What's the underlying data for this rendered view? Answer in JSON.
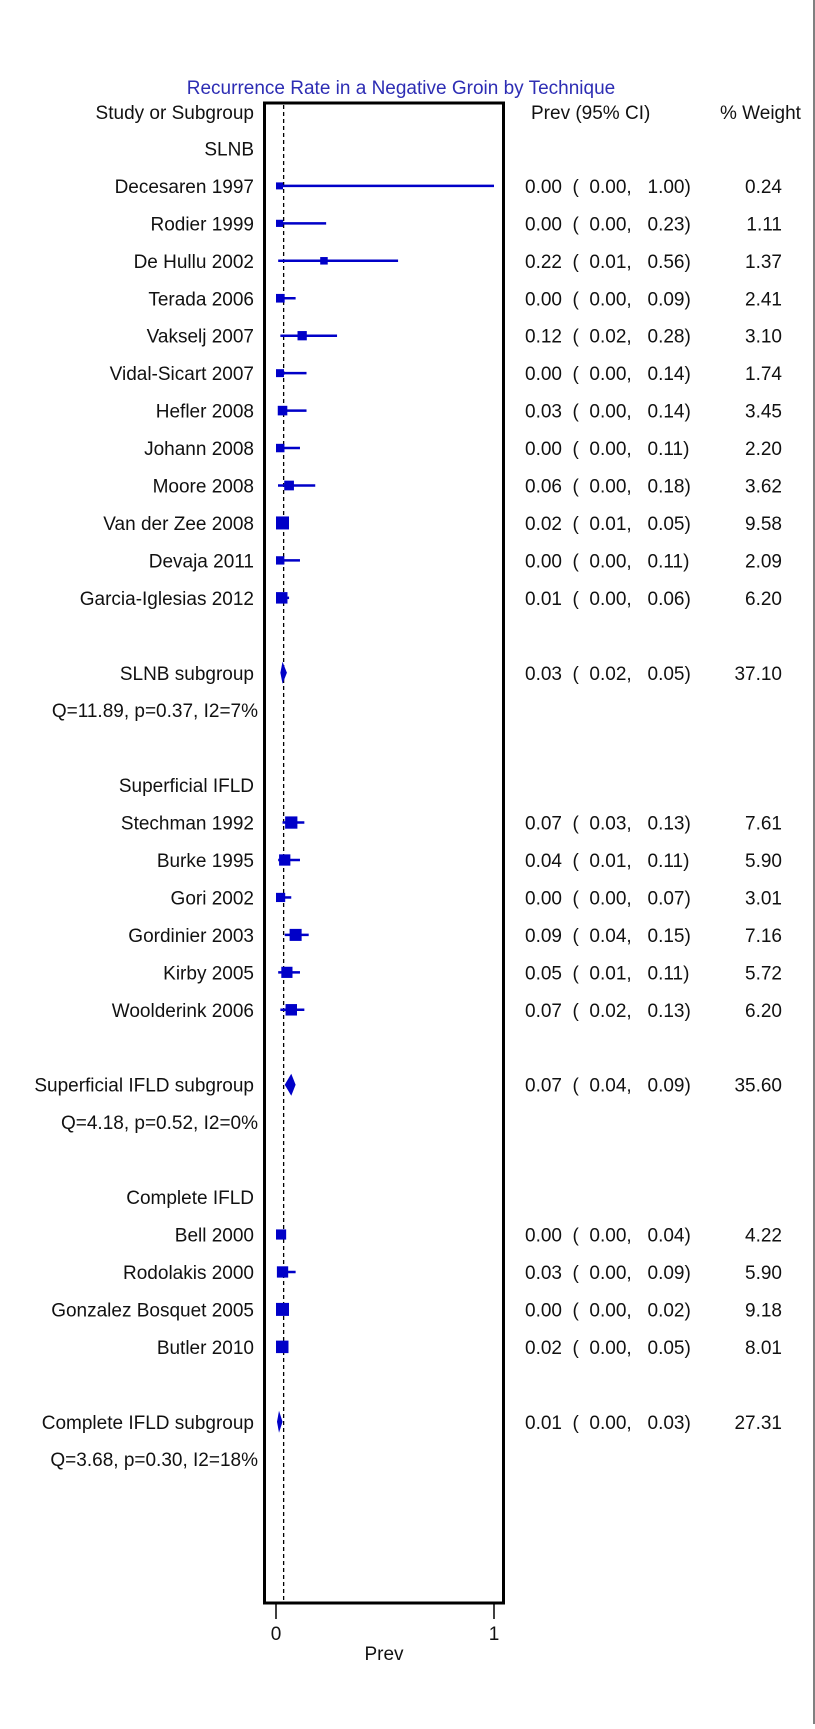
{
  "chart_data": {
    "type": "forest",
    "title": "Recurrence Rate in a Negative Groin by Technique",
    "column_headers": {
      "study": "Study or Subgroup",
      "estimate": "Prev (95% CI)",
      "weight": "% Weight"
    },
    "xlabel": "Prev",
    "xlim": [
      0,
      1
    ],
    "x_ticks": [
      "0",
      "1"
    ],
    "overall_line_x": 0.035,
    "colors": {
      "marker": "#0000c8",
      "title": "#2d2db4",
      "frame": "#000000"
    },
    "groups": [
      {
        "name": "SLNB",
        "studies": [
          {
            "label": "Decesaren 1997",
            "est": 0.0,
            "lo": 0.0,
            "hi": 1.0,
            "ci_text": "0.00  (  0.00,   1.00)",
            "weight": "0.24",
            "w": 0.24
          },
          {
            "label": "Rodier 1999",
            "est": 0.0,
            "lo": 0.0,
            "hi": 0.23,
            "ci_text": "0.00  (  0.00,   0.23)",
            "weight": "1.11",
            "w": 1.11
          },
          {
            "label": "De Hullu 2002",
            "est": 0.22,
            "lo": 0.01,
            "hi": 0.56,
            "ci_text": "0.22  (  0.01,   0.56)",
            "weight": "1.37",
            "w": 1.37
          },
          {
            "label": "Terada 2006",
            "est": 0.0,
            "lo": 0.0,
            "hi": 0.09,
            "ci_text": "0.00  (  0.00,   0.09)",
            "weight": "2.41",
            "w": 2.41
          },
          {
            "label": "Vakselj 2007",
            "est": 0.12,
            "lo": 0.02,
            "hi": 0.28,
            "ci_text": "0.12  (  0.02,   0.28)",
            "weight": "3.10",
            "w": 3.1
          },
          {
            "label": "Vidal-Sicart 2007",
            "est": 0.0,
            "lo": 0.0,
            "hi": 0.14,
            "ci_text": "0.00  (  0.00,   0.14)",
            "weight": "1.74",
            "w": 1.74
          },
          {
            "label": "Hefler 2008",
            "est": 0.03,
            "lo": 0.0,
            "hi": 0.14,
            "ci_text": "0.03  (  0.00,   0.14)",
            "weight": "3.45",
            "w": 3.45
          },
          {
            "label": "Johann 2008",
            "est": 0.0,
            "lo": 0.0,
            "hi": 0.11,
            "ci_text": "0.00  (  0.00,   0.11)",
            "weight": "2.20",
            "w": 2.2
          },
          {
            "label": "Moore 2008",
            "est": 0.06,
            "lo": 0.0,
            "hi": 0.18,
            "ci_text": "0.06  (  0.00,   0.18)",
            "weight": "3.62",
            "w": 3.62
          },
          {
            "label": "Van der Zee 2008",
            "est": 0.02,
            "lo": 0.01,
            "hi": 0.05,
            "ci_text": "0.02  (  0.01,   0.05)",
            "weight": "9.58",
            "w": 9.58
          },
          {
            "label": "Devaja 2011",
            "est": 0.0,
            "lo": 0.0,
            "hi": 0.11,
            "ci_text": "0.00  (  0.00,   0.11)",
            "weight": "2.09",
            "w": 2.09
          },
          {
            "label": "Garcia-Iglesias 2012",
            "est": 0.01,
            "lo": 0.0,
            "hi": 0.06,
            "ci_text": "0.01  (  0.00,   0.06)",
            "weight": "6.20",
            "w": 6.2
          }
        ],
        "subgroup": {
          "label": "SLNB subgroup",
          "est": 0.03,
          "lo": 0.02,
          "hi": 0.05,
          "ci_text": "0.03  (  0.02,   0.05)",
          "weight": "37.10"
        },
        "stats": "Q=11.89, p=0.37, I2=7%"
      },
      {
        "name": "Superficial IFLD",
        "studies": [
          {
            "label": "Stechman 1992",
            "est": 0.07,
            "lo": 0.03,
            "hi": 0.13,
            "ci_text": "0.07  (  0.03,   0.13)",
            "weight": "7.61",
            "w": 7.61
          },
          {
            "label": "Burke 1995",
            "est": 0.04,
            "lo": 0.01,
            "hi": 0.11,
            "ci_text": "0.04  (  0.01,   0.11)",
            "weight": "5.90",
            "w": 5.9
          },
          {
            "label": "Gori 2002",
            "est": 0.0,
            "lo": 0.0,
            "hi": 0.07,
            "ci_text": "0.00  (  0.00,   0.07)",
            "weight": "3.01",
            "w": 3.01
          },
          {
            "label": "Gordinier 2003",
            "est": 0.09,
            "lo": 0.04,
            "hi": 0.15,
            "ci_text": "0.09  (  0.04,   0.15)",
            "weight": "7.16",
            "w": 7.16
          },
          {
            "label": "Kirby 2005",
            "est": 0.05,
            "lo": 0.01,
            "hi": 0.11,
            "ci_text": "0.05  (  0.01,   0.11)",
            "weight": "5.72",
            "w": 5.72
          },
          {
            "label": "Woolderink 2006",
            "est": 0.07,
            "lo": 0.02,
            "hi": 0.13,
            "ci_text": "0.07  (  0.02,   0.13)",
            "weight": "6.20",
            "w": 6.2
          }
        ],
        "subgroup": {
          "label": "Superficial IFLD subgroup",
          "est": 0.07,
          "lo": 0.04,
          "hi": 0.09,
          "ci_text": "0.07  (  0.04,   0.09)",
          "weight": "35.60"
        },
        "stats": "Q=4.18, p=0.52, I2=0%"
      },
      {
        "name": "Complete IFLD",
        "studies": [
          {
            "label": "Bell 2000",
            "est": 0.0,
            "lo": 0.0,
            "hi": 0.04,
            "ci_text": "0.00  (  0.00,   0.04)",
            "weight": "4.22",
            "w": 4.22
          },
          {
            "label": "Rodolakis 2000",
            "est": 0.03,
            "lo": 0.0,
            "hi": 0.09,
            "ci_text": "0.03  (  0.00,   0.09)",
            "weight": "5.90",
            "w": 5.9
          },
          {
            "label": "Gonzalez Bosquet 2005",
            "est": 0.0,
            "lo": 0.0,
            "hi": 0.02,
            "ci_text": "0.00  (  0.00,   0.02)",
            "weight": "9.18",
            "w": 9.18
          },
          {
            "label": "Butler 2010",
            "est": 0.02,
            "lo": 0.0,
            "hi": 0.05,
            "ci_text": "0.02  (  0.00,   0.05)",
            "weight": "8.01",
            "w": 8.01
          }
        ],
        "subgroup": {
          "label": "Complete IFLD subgroup",
          "est": 0.01,
          "lo": 0.0,
          "hi": 0.03,
          "ci_text": "0.01  (  0.00,   0.03)",
          "weight": "27.31"
        },
        "stats": "Q=3.68, p=0.30, I2=18%"
      }
    ]
  }
}
